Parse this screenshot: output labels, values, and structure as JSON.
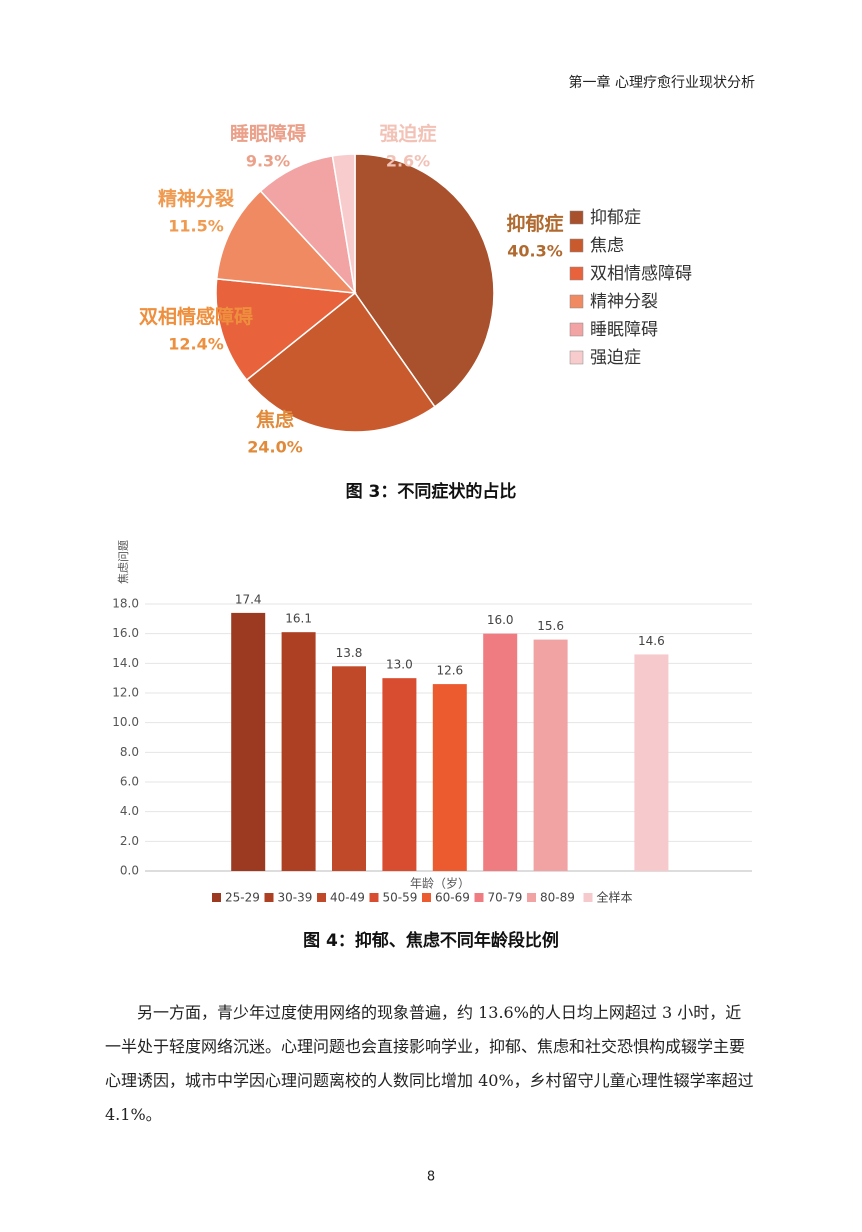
{
  "header": "第一章 心理疗愈行业现状分析",
  "chart_data": [
    {
      "type": "pie",
      "categories": [
        "抑郁症",
        "焦虑",
        "双相情感障碍",
        "精神分裂",
        "睡眠障碍",
        "强迫症"
      ],
      "values": [
        40.3,
        24.0,
        12.4,
        11.5,
        9.3,
        2.6
      ],
      "value_labels": [
        "40.3%",
        "24.0%",
        "12.4%",
        "11.5%",
        "9.3%",
        "2.6%"
      ],
      "colors": [
        "#a9502c",
        "#c95a2e",
        "#e8623c",
        "#ef8a62",
        "#f2a3a3",
        "#f8cccc"
      ],
      "label_colors": [
        "#b06a30",
        "#e08a3a",
        "#ee8f3e",
        "#ef9a50",
        "#eba08a",
        "#f2c2b6"
      ],
      "legend": "right"
    },
    {
      "type": "bar",
      "y_label": "焦虑问题",
      "x_label": "年龄（岁）",
      "categories": [
        "25-29",
        "30-39",
        "40-49",
        "50-59",
        "60-69",
        "70-79",
        "80-89",
        null,
        "全样本"
      ],
      "values": [
        17.4,
        16.1,
        13.8,
        13.0,
        12.6,
        16.0,
        15.6,
        null,
        14.6
      ],
      "value_labels": [
        "17.4",
        "16.1",
        "13.8",
        "13.0",
        "12.6",
        "16.0",
        "15.6",
        null,
        "14.6"
      ],
      "colors": [
        "#9b3a20",
        "#ad3f22",
        "#c0492a",
        "#d84c30",
        "#ec5a30",
        "#ee7c80",
        "#f1a2a2",
        null,
        "#f6c9cd"
      ],
      "ylim": [
        0,
        18
      ],
      "yticks": [
        {
          "value": 0,
          "label": "0.0"
        },
        {
          "value": 2,
          "label": "2.0"
        },
        {
          "value": 4,
          "label": "4.0"
        },
        {
          "value": 6,
          "label": "6.0"
        },
        {
          "value": 8,
          "label": "8.0"
        },
        {
          "value": 10,
          "label": "10.0"
        },
        {
          "value": 12,
          "label": "12.0"
        },
        {
          "value": 14,
          "label": "14.0"
        },
        {
          "value": 16,
          "label": "16.0"
        },
        {
          "value": 18,
          "label": "18.0"
        }
      ],
      "grid": true,
      "legend": "bottom"
    }
  ],
  "figure_captions": [
    "图 3：不同症状的占比",
    "图 4：抑郁、焦虑不同年龄段比例"
  ],
  "paragraph": "另一方面，青少年过度使用网络的现象普遍，约 13.6%的人日均上网超过 3 小时，近一半处于轻度网络沉迷。心理问题也会直接影响学业，抑郁、焦虑和社交恐惧构成辍学主要心理诱因，城市中学因心理问题离校的人数同比增加 40%，乡村留守儿童心理性辍学率超过 4.1%。",
  "page_number": "8"
}
